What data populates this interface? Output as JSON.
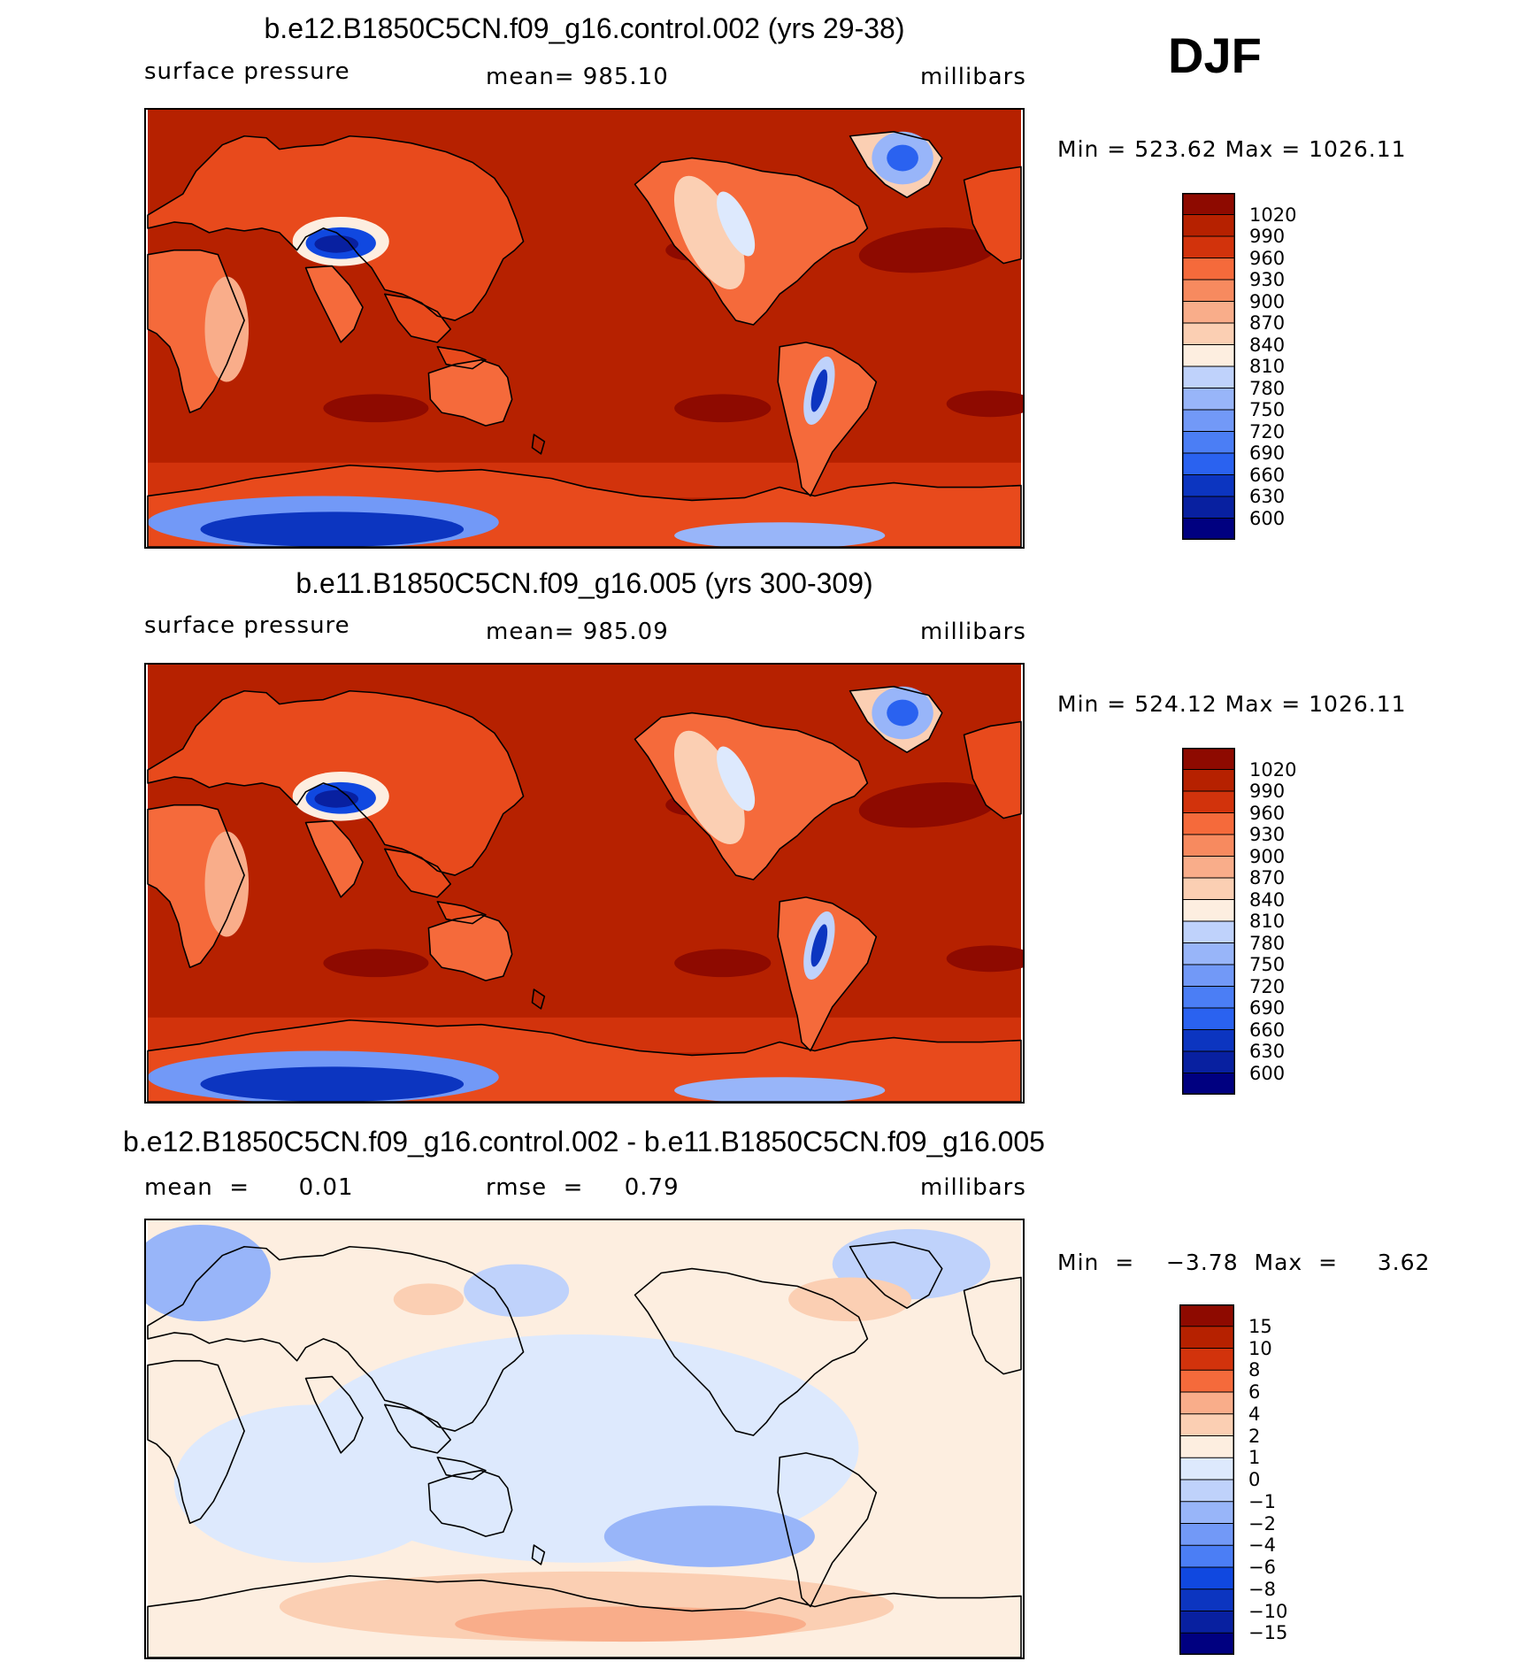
{
  "season": "DJF",
  "colors": {
    "abs_scale": [
      "#000080",
      "#0820a0",
      "#0c35c0",
      "#1048e0",
      "#2a62f0",
      "#4b7ef5",
      "#7299f7",
      "#98b5f9",
      "#bfd2fb",
      "#dde9fd",
      "#fdeee0",
      "#fbcfb3",
      "#f9ad8a",
      "#f78a5f",
      "#f56a3b",
      "#e84a1c",
      "#d2330c",
      "#b62100",
      "#8e0a00"
    ],
    "diff_scale": [
      "#000080",
      "#0820a0",
      "#0c35c0",
      "#1048e0",
      "#2a62f0",
      "#4b7ef5",
      "#7299f7",
      "#98b5f9",
      "#bfd2fb",
      "#dde9fd",
      "#fdeee0",
      "#fbcfb3",
      "#f9ad8a",
      "#f78a5f",
      "#f56a3b",
      "#d2330c",
      "#b62100",
      "#8e0a00"
    ]
  },
  "chart_data": [
    {
      "type": "heatmap",
      "title": "b.e12.B1850C5CN.f09_g16.control.002 (yrs 29-38)",
      "left_label": "surface pressure",
      "center_label": "mean=  985.10",
      "right_label": "millibars",
      "minmax_label": "Min  =  523.62  Max  =  1026.11",
      "variable": "surface pressure",
      "units": "millibars",
      "mean": 985.1,
      "min": 523.62,
      "max": 1026.11,
      "colorbar_levels": [
        "1020",
        "990",
        "960",
        "930",
        "900",
        "870",
        "840",
        "810",
        "780",
        "750",
        "720",
        "690",
        "660",
        "630",
        "600"
      ]
    },
    {
      "type": "heatmap",
      "title": "b.e11.B1850C5CN.f09_g16.005 (yrs 300-309)",
      "left_label": "surface pressure",
      "center_label": "mean=  985.09",
      "right_label": "millibars",
      "minmax_label": "Min  =  524.12  Max  =  1026.11",
      "variable": "surface pressure",
      "units": "millibars",
      "mean": 985.09,
      "min": 524.12,
      "max": 1026.11,
      "colorbar_levels": [
        "1020",
        "990",
        "960",
        "930",
        "900",
        "870",
        "840",
        "810",
        "780",
        "750",
        "720",
        "690",
        "660",
        "630",
        "600"
      ]
    },
    {
      "type": "heatmap",
      "title": "b.e12.B1850C5CN.f09_g16.control.002 - b.e11.B1850C5CN.f09_g16.005",
      "left_label": "mean  =      0.01",
      "center_label": "rmse  =     0.79",
      "right_label": "millibars",
      "minmax_label": "Min  =    −3.78  Max  =     3.62",
      "units": "millibars",
      "mean": 0.01,
      "rmse": 0.79,
      "min": -3.78,
      "max": 3.62,
      "colorbar_levels": [
        "15",
        "10",
        "8",
        "6",
        "4",
        "2",
        "1",
        "0",
        "−1",
        "−2",
        "−4",
        "−6",
        "−8",
        "−10",
        "−15"
      ]
    }
  ]
}
